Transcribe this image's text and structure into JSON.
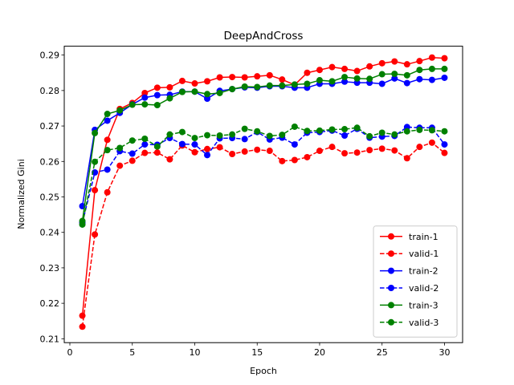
{
  "chart_data": {
    "type": "line",
    "title": "DeepAndCross",
    "xlabel": "Epoch",
    "ylabel": "Normalized Gini",
    "xlim": [
      -0.45,
      31.45
    ],
    "ylim": [
      0.2089,
      0.2925
    ],
    "xticks": [
      0,
      5,
      10,
      15,
      20,
      25,
      30
    ],
    "yticks": [
      0.21,
      0.22,
      0.23,
      0.24,
      0.25,
      0.26,
      0.27,
      0.28,
      0.29
    ],
    "ytick_labels": [
      "0.21",
      "0.22",
      "0.23",
      "0.24",
      "0.25",
      "0.26",
      "0.27",
      "0.28",
      "0.29"
    ],
    "grid": false,
    "legend_position": "lower-right",
    "x": [
      1,
      2,
      3,
      4,
      5,
      6,
      7,
      8,
      9,
      10,
      11,
      12,
      13,
      14,
      15,
      16,
      17,
      18,
      19,
      20,
      21,
      22,
      23,
      24,
      25,
      26,
      27,
      28,
      29,
      30
    ],
    "series": [
      {
        "name": "train-1",
        "color": "#ff0000",
        "style": "solid",
        "values": [
          0.2165,
          0.2519,
          0.2661,
          0.2748,
          0.2765,
          0.2793,
          0.2808,
          0.2809,
          0.2827,
          0.282,
          0.2826,
          0.2837,
          0.2838,
          0.2837,
          0.284,
          0.2843,
          0.2831,
          0.2816,
          0.285,
          0.2858,
          0.2866,
          0.2861,
          0.2855,
          0.2868,
          0.2877,
          0.2882,
          0.2874,
          0.2883,
          0.2893,
          0.2891
        ]
      },
      {
        "name": "valid-1",
        "color": "#ff0000",
        "style": "dashed",
        "values": [
          0.2134,
          0.2394,
          0.2513,
          0.2588,
          0.2602,
          0.2624,
          0.2625,
          0.2606,
          0.2645,
          0.2626,
          0.2635,
          0.264,
          0.2621,
          0.2628,
          0.2633,
          0.263,
          0.2601,
          0.2604,
          0.2612,
          0.263,
          0.2641,
          0.2623,
          0.2625,
          0.2632,
          0.2636,
          0.2631,
          0.2609,
          0.2641,
          0.2653,
          0.2624
        ]
      },
      {
        "name": "train-2",
        "color": "#0000ff",
        "style": "solid",
        "values": [
          0.2474,
          0.2689,
          0.2715,
          0.2737,
          0.2761,
          0.278,
          0.2787,
          0.2788,
          0.2797,
          0.2797,
          0.2777,
          0.2799,
          0.2804,
          0.2809,
          0.2808,
          0.2812,
          0.2812,
          0.2808,
          0.2808,
          0.2819,
          0.2819,
          0.2825,
          0.2822,
          0.2822,
          0.2819,
          0.2834,
          0.2821,
          0.2832,
          0.283,
          0.2836
        ]
      },
      {
        "name": "valid-2",
        "color": "#0000ff",
        "style": "dashed",
        "values": [
          0.2427,
          0.2569,
          0.2577,
          0.2629,
          0.2622,
          0.2648,
          0.2647,
          0.2666,
          0.2649,
          0.2648,
          0.2618,
          0.2665,
          0.2666,
          0.2663,
          0.2683,
          0.2662,
          0.2667,
          0.2648,
          0.2681,
          0.2683,
          0.2687,
          0.2673,
          0.2692,
          0.2667,
          0.267,
          0.2672,
          0.2697,
          0.2695,
          0.2695,
          0.2648
        ]
      },
      {
        "name": "train-3",
        "color": "#008000",
        "style": "solid",
        "values": [
          0.2432,
          0.268,
          0.2734,
          0.2744,
          0.276,
          0.2761,
          0.2759,
          0.2778,
          0.2796,
          0.2797,
          0.279,
          0.2793,
          0.2804,
          0.2811,
          0.281,
          0.2814,
          0.2814,
          0.2817,
          0.2819,
          0.2829,
          0.2826,
          0.2838,
          0.2834,
          0.2833,
          0.2846,
          0.2847,
          0.2843,
          0.2858,
          0.2861,
          0.2861
        ]
      },
      {
        "name": "valid-3",
        "color": "#008000",
        "style": "dashed",
        "values": [
          0.2422,
          0.2599,
          0.2632,
          0.2638,
          0.2659,
          0.2664,
          0.2642,
          0.2676,
          0.2683,
          0.2666,
          0.2674,
          0.2673,
          0.2676,
          0.2692,
          0.2685,
          0.2672,
          0.2675,
          0.2698,
          0.2686,
          0.2687,
          0.269,
          0.2691,
          0.2695,
          0.2671,
          0.2681,
          0.2676,
          0.2685,
          0.2689,
          0.2688,
          0.2685
        ]
      }
    ]
  }
}
